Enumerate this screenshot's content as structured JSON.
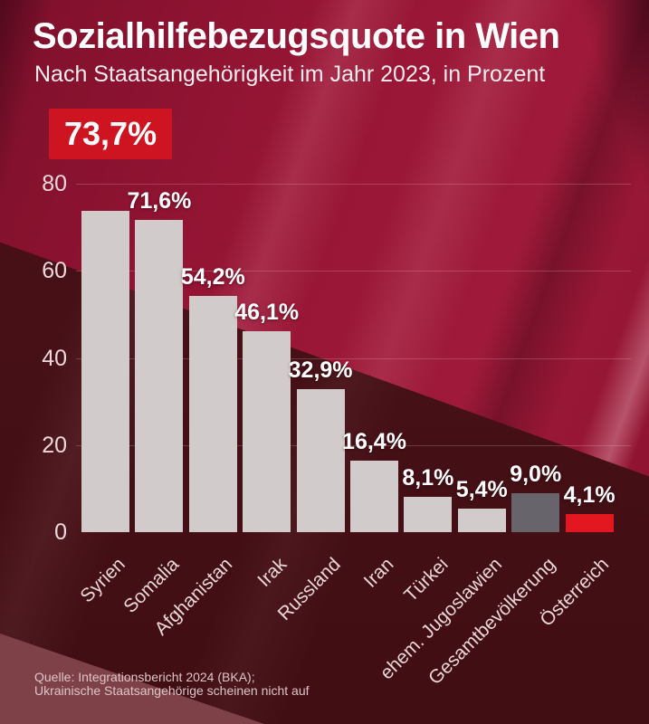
{
  "header": {
    "title": "Sozialhilfebezugsquote in Wien",
    "subtitle": "Nach Staatsangehörigkeit im Jahr 2023, in Prozent"
  },
  "highlight": {
    "value": "73,7%"
  },
  "chart_data": {
    "type": "bar",
    "title": "Sozialhilfebezugsquote in Wien",
    "subtitle": "Nach Staatsangehörigkeit im Jahr 2023, in Prozent",
    "unit": "Prozent",
    "categories": [
      "Syrien",
      "Somalia",
      "Afghanistan",
      "Irak",
      "Russland",
      "Iran",
      "Türkei",
      "ehem. Jugoslawien",
      "Gesamtbevölkerung",
      "Österreich"
    ],
    "values": [
      73.7,
      71.6,
      54.2,
      46.1,
      32.9,
      16.4,
      8.1,
      5.4,
      9.0,
      4.1
    ],
    "value_labels": [
      "73,7%",
      "71,6%",
      "54,2%",
      "46,1%",
      "32,9%",
      "16,4%",
      "8,1%",
      "5,4%",
      "9,0%",
      "4,1%"
    ],
    "bar_colors": [
      "#d2cbcb",
      "#d2cbcb",
      "#d2cbcb",
      "#d2cbcb",
      "#d2cbcb",
      "#d2cbcb",
      "#d2cbcb",
      "#d2cbcb",
      "#67646b",
      "#e2171f"
    ],
    "yticks": [
      0,
      20,
      40,
      60,
      80
    ],
    "ylim": [
      0,
      80
    ],
    "grid": true,
    "legend": false
  },
  "footer": {
    "line1": "Quelle: Integrationsbericht 2024 (BKA);",
    "line2": "Ukrainische Staatsangehörige scheinen nicht auf"
  },
  "colors": {
    "badge_red": "#ce1420",
    "austria_bar_red": "#e2171f",
    "default_bar_gray": "#d2cbcb",
    "total_population_gray": "#67646b",
    "background_crimson": "#971535",
    "background_maroon": "#451016"
  }
}
